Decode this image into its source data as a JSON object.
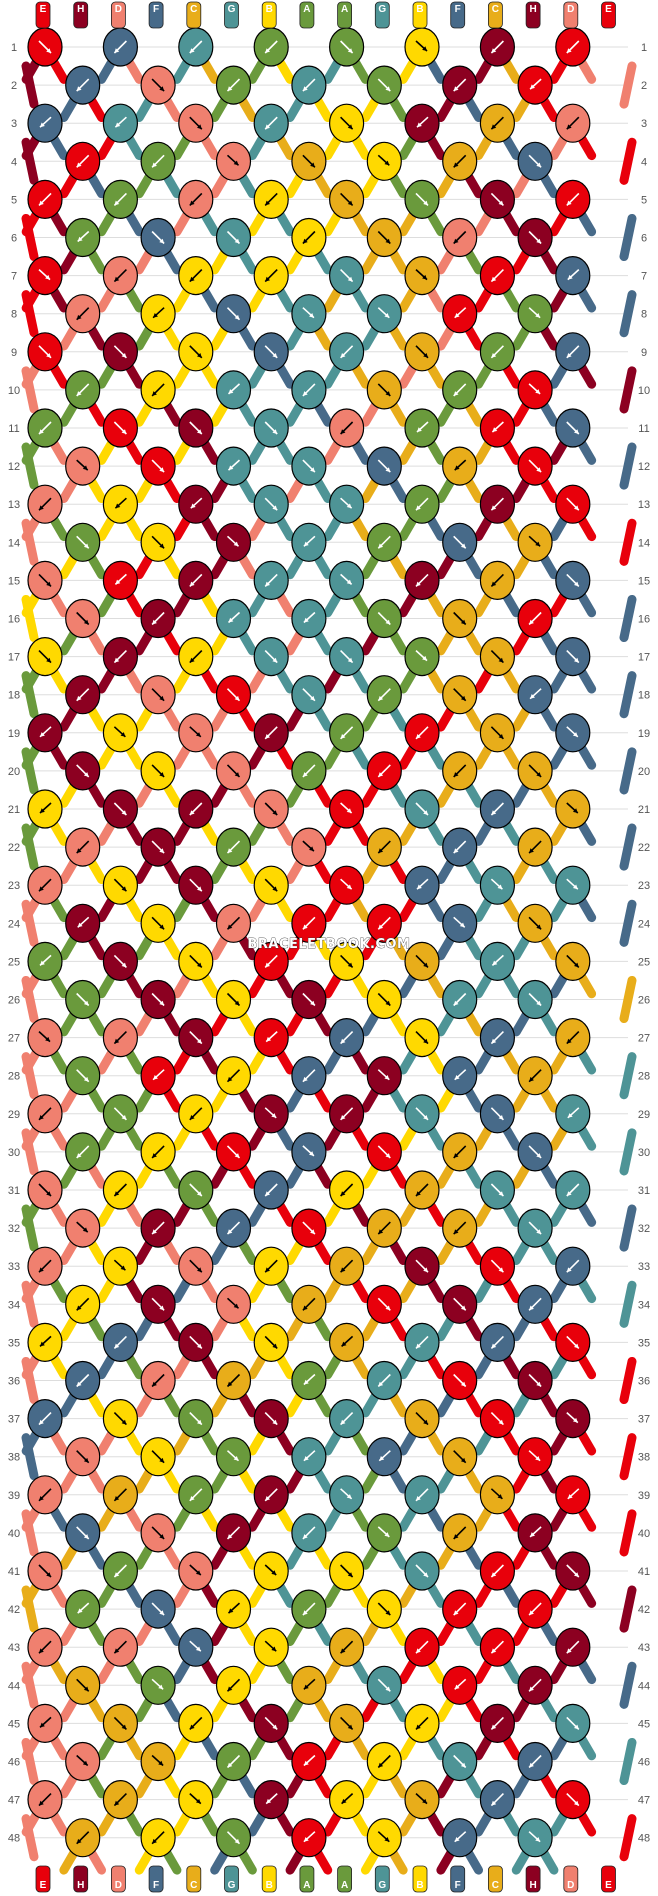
{
  "watermark": "BRACELETBOOK.COM",
  "colors": {
    "E": "#e8000b",
    "H": "#8c0021",
    "D": "#f0806f",
    "F": "#476a89",
    "C": "#e8ad1a",
    "G": "#4e9496",
    "B": "#ffd900",
    "A": "#6a9a3c"
  },
  "strings_top": [
    "E",
    "H",
    "D",
    "F",
    "C",
    "G",
    "B",
    "A",
    "A",
    "G",
    "B",
    "F",
    "C",
    "H",
    "D",
    "E"
  ],
  "strings_bottom": [
    "E",
    "H",
    "D",
    "F",
    "C",
    "G",
    "B",
    "A",
    "A",
    "G",
    "B",
    "F",
    "C",
    "H",
    "D",
    "E"
  ],
  "row_labels": [
    "1",
    "2",
    "3",
    "4",
    "5",
    "6",
    "7",
    "8",
    "9",
    "10",
    "11",
    "12",
    "13",
    "14",
    "15",
    "16",
    "17",
    "18",
    "19",
    "20",
    "21",
    "22",
    "23",
    "24",
    "25",
    "26",
    "27",
    "28",
    "29",
    "30",
    "31",
    "32",
    "33",
    "34",
    "35",
    "36",
    "37",
    "38",
    "39",
    "40",
    "41",
    "42",
    "43",
    "44",
    "45",
    "46",
    "47",
    "48"
  ],
  "knot_icon": "arrow-icon"
}
